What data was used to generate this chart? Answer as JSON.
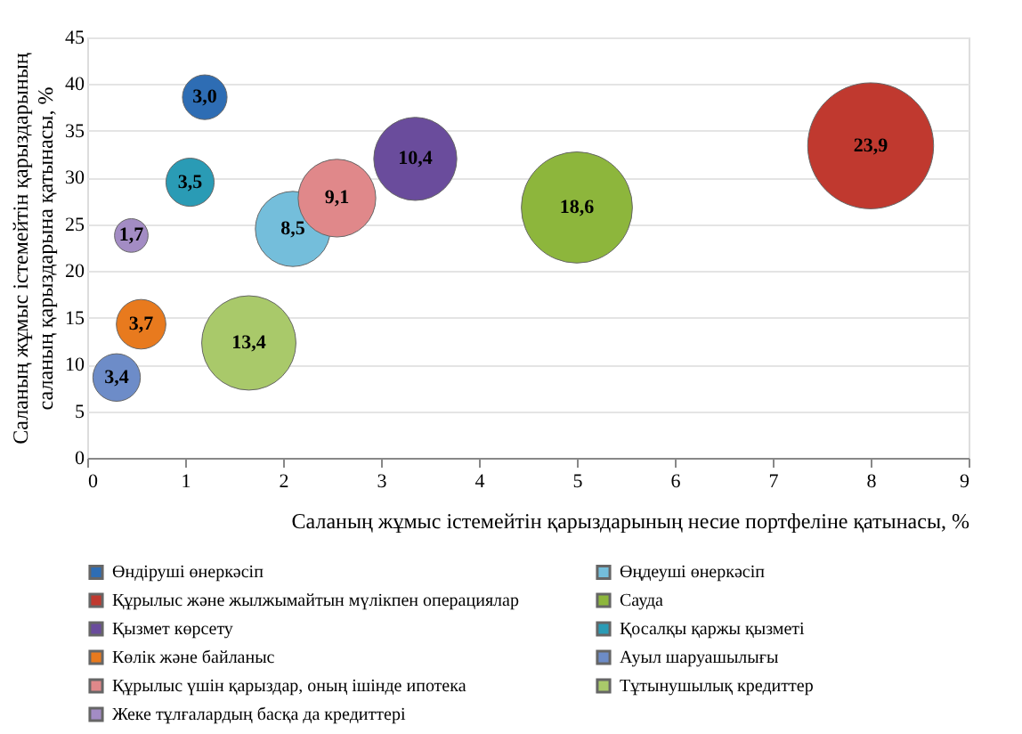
{
  "chart_data": {
    "type": "bubble",
    "xlabel": "Саланың жұмыс істемейтін қарыздарының несие портфеліне қатынасы, %",
    "ylabel": "Саланың жұмыс істемейтін қарыздарының саланың қарыздарына қатынасы, %",
    "xlim": [
      0,
      9
    ],
    "xticks": [
      0,
      1,
      2,
      3,
      4,
      5,
      6,
      7,
      8,
      9
    ],
    "ylim": [
      0,
      45
    ],
    "yticks": [
      0,
      5,
      10,
      15,
      20,
      25,
      30,
      35,
      40,
      45
    ],
    "grid": "y",
    "legend": "bottom",
    "series": [
      {
        "name": "Өндіруші өнеркәсіп",
        "color": "#2e6db4",
        "x": [
          1.2
        ],
        "values": [
          38.6
        ],
        "sizes": [
          3.0
        ],
        "value_labels": [
          "3,0"
        ]
      },
      {
        "name": "Өңдеуші өнеркәсіп",
        "color": "#74bedb",
        "x": [
          2.1
        ],
        "values": [
          24.5
        ],
        "sizes": [
          8.5
        ],
        "value_labels": [
          "8,5"
        ]
      },
      {
        "name": "Құрылыс және жылжымайтын мүлікпен операциялар",
        "color": "#c0392f",
        "x": [
          8.0
        ],
        "values": [
          33.4
        ],
        "sizes": [
          23.9
        ],
        "value_labels": [
          "23,9"
        ]
      },
      {
        "name": "Сауда",
        "color": "#8db63c",
        "x": [
          5.0
        ],
        "values": [
          26.8
        ],
        "sizes": [
          18.6
        ],
        "value_labels": [
          "18,6"
        ]
      },
      {
        "name": "Қызмет көрсету",
        "color": "#6a4c9c",
        "x": [
          3.35
        ],
        "values": [
          32.0
        ],
        "sizes": [
          10.4
        ],
        "value_labels": [
          "10,4"
        ]
      },
      {
        "name": "Қосалқы қаржы қызметі",
        "color": "#2a9bb5",
        "x": [
          1.05
        ],
        "values": [
          29.5
        ],
        "sizes": [
          3.5
        ],
        "value_labels": [
          "3,5"
        ]
      },
      {
        "name": "Көлік және байланыс",
        "color": "#e87a1e",
        "x": [
          0.55
        ],
        "values": [
          14.3
        ],
        "sizes": [
          3.7
        ],
        "value_labels": [
          "3,7"
        ]
      },
      {
        "name": "Ауыл шаруашылығы",
        "color": "#6d8cc8",
        "x": [
          0.3
        ],
        "values": [
          8.6
        ],
        "sizes": [
          3.4
        ],
        "value_labels": [
          "3,4"
        ]
      },
      {
        "name": "Құрылыс үшін қарыздар, оның ішінде ипотека",
        "color": "#e0888a",
        "x": [
          2.55
        ],
        "values": [
          27.8
        ],
        "sizes": [
          9.1
        ],
        "value_labels": [
          "9,1"
        ]
      },
      {
        "name": "Тұтынушылық кредиттер",
        "color": "#a9c96a",
        "x": [
          1.65
        ],
        "values": [
          12.3
        ],
        "sizes": [
          13.4
        ],
        "value_labels": [
          "13,4"
        ]
      },
      {
        "name": "Жеке тұлғалардың басқа да кредиттері",
        "color": "#a38cc4",
        "x": [
          0.45
        ],
        "values": [
          23.8
        ],
        "sizes": [
          1.7
        ],
        "value_labels": [
          "1,7"
        ]
      }
    ]
  }
}
